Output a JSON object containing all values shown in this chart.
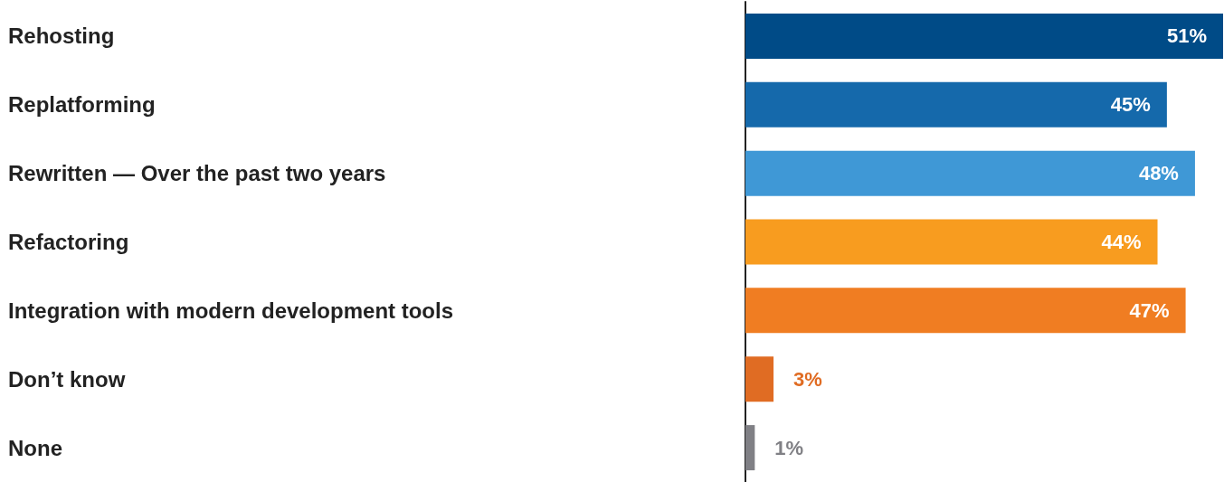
{
  "chart_data": {
    "type": "bar",
    "orientation": "horizontal",
    "categories": [
      "Rehosting",
      "Replatforming",
      "Rewritten — Over the past two years",
      "Refactoring",
      "Integration with modern development tools",
      "Don’t know",
      "None"
    ],
    "values": [
      51,
      45,
      48,
      44,
      47,
      3,
      1
    ],
    "colors": [
      "#004b87",
      "#1569ab",
      "#3f98d6",
      "#f89c1f",
      "#f07d22",
      "#e06c23",
      "#808085"
    ],
    "value_labels": [
      "51%",
      "45%",
      "48%",
      "44%",
      "47%",
      "3%",
      "1%"
    ],
    "xlim": [
      0,
      51
    ]
  }
}
